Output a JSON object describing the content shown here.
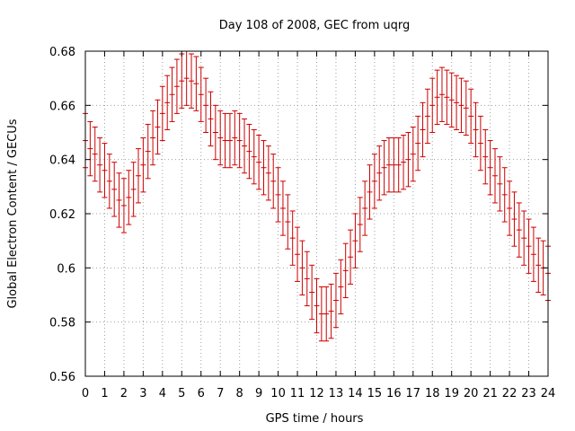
{
  "chart_data": {
    "type": "scatter",
    "title": "Day 108 of 2008, GEC from uqrg",
    "xlabel": "GPS time / hours",
    "ylabel": "Global Electron Content / GECUs",
    "xlim": [
      0,
      24
    ],
    "ylim": [
      0.56,
      0.68
    ],
    "xticks": [
      "0",
      "1",
      "2",
      "3",
      "4",
      "5",
      "6",
      "7",
      "8",
      "9",
      "10",
      "11",
      "12",
      "13",
      "14",
      "15",
      "16",
      "17",
      "18",
      "19",
      "20",
      "21",
      "22",
      "23",
      "24"
    ],
    "yticks": [
      "0.56",
      "0.58",
      "0.6",
      "0.62",
      "0.64",
      "0.66",
      "0.68"
    ],
    "grid": true,
    "legend": "none",
    "error_bar_half_width": 0.01,
    "colors": {
      "series": "#cc0000",
      "grid": "#a0a0a0",
      "axis": "#000000"
    },
    "series": [
      {
        "x": [
          0,
          0.25,
          0.5,
          0.75,
          1,
          1.25,
          1.5,
          1.75,
          2,
          2.25,
          2.5,
          2.75,
          3,
          3.25,
          3.5,
          3.75,
          4,
          4.25,
          4.5,
          4.75,
          5,
          5.25,
          5.5,
          5.75,
          6,
          6.25,
          6.5,
          6.75,
          7,
          7.25,
          7.5,
          7.75,
          8,
          8.25,
          8.5,
          8.75,
          9,
          9.25,
          9.5,
          9.75,
          10,
          10.25,
          10.5,
          10.75,
          11,
          11.25,
          11.5,
          11.75,
          12,
          12.25,
          12.5,
          12.75,
          13,
          13.25,
          13.5,
          13.75,
          14,
          14.25,
          14.5,
          14.75,
          15,
          15.25,
          15.5,
          15.75,
          16,
          16.25,
          16.5,
          16.75,
          17,
          17.25,
          17.5,
          17.75,
          18,
          18.25,
          18.5,
          18.75,
          19,
          19.25,
          19.5,
          19.75,
          20,
          20.25,
          20.5,
          20.75,
          21,
          21.25,
          21.5,
          21.75,
          22,
          22.25,
          22.5,
          22.75,
          23,
          23.25,
          23.5,
          23.75,
          24
        ],
        "y": [
          0.647,
          0.644,
          0.642,
          0.638,
          0.636,
          0.632,
          0.629,
          0.625,
          0.623,
          0.626,
          0.629,
          0.634,
          0.638,
          0.643,
          0.648,
          0.652,
          0.657,
          0.661,
          0.664,
          0.667,
          0.669,
          0.67,
          0.669,
          0.668,
          0.664,
          0.66,
          0.655,
          0.65,
          0.648,
          0.647,
          0.647,
          0.648,
          0.647,
          0.645,
          0.643,
          0.641,
          0.639,
          0.637,
          0.635,
          0.632,
          0.627,
          0.622,
          0.617,
          0.611,
          0.605,
          0.6,
          0.596,
          0.591,
          0.586,
          0.583,
          0.583,
          0.584,
          0.588,
          0.593,
          0.599,
          0.604,
          0.61,
          0.616,
          0.622,
          0.628,
          0.632,
          0.635,
          0.637,
          0.638,
          0.638,
          0.638,
          0.639,
          0.64,
          0.642,
          0.646,
          0.651,
          0.656,
          0.66,
          0.663,
          0.664,
          0.663,
          0.662,
          0.661,
          0.66,
          0.659,
          0.656,
          0.651,
          0.646,
          0.641,
          0.637,
          0.634,
          0.631,
          0.627,
          0.622,
          0.618,
          0.614,
          0.611,
          0.608,
          0.605,
          0.601,
          0.6,
          0.598
        ]
      }
    ]
  }
}
